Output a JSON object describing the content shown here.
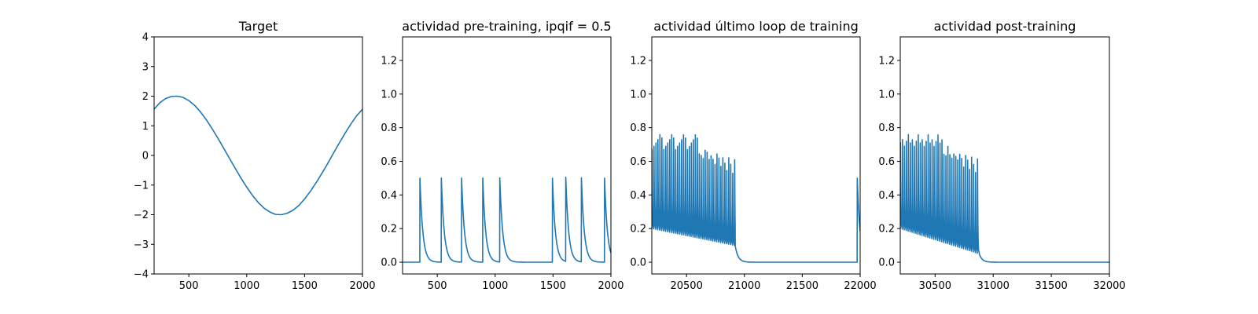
{
  "figure": {
    "background": "#ffffff",
    "line_color": "#1f77b4"
  },
  "chart_data": [
    {
      "type": "line",
      "title": "Target",
      "xlabel": "",
      "ylabel": "",
      "xlim": [
        200,
        2000
      ],
      "ylim": [
        -4,
        4
      ],
      "xticks": [
        500,
        1000,
        1500,
        2000
      ],
      "yticks": [
        -4,
        -3,
        -2,
        -1,
        0,
        1,
        2,
        3,
        4
      ],
      "xtick_labels": [
        "500",
        "1000",
        "1500",
        "2000"
      ],
      "ytick_labels": [
        "−4",
        "−3",
        "−2",
        "−1",
        "0",
        "1",
        "2",
        "3",
        "4"
      ],
      "grid": false,
      "series": [
        {
          "x": [
            200,
            250,
            300,
            350,
            400,
            450,
            500,
            550,
            600,
            650,
            700,
            750,
            800,
            850,
            900,
            950,
            1000,
            1050,
            1100,
            1150,
            1200,
            1250,
            1300,
            1350,
            1400,
            1450,
            1500,
            1550,
            1600,
            1650,
            1700,
            1750,
            1800,
            1850,
            1900,
            1950,
            2000
          ],
          "values": [
            1.56,
            1.78,
            1.92,
            1.99,
            2.0,
            1.96,
            1.85,
            1.69,
            1.47,
            1.21,
            0.91,
            0.59,
            0.25,
            -0.09,
            -0.43,
            -0.76,
            -1.07,
            -1.35,
            -1.59,
            -1.78,
            -1.91,
            -1.99,
            -2.0,
            -1.95,
            -1.85,
            -1.69,
            -1.47,
            -1.21,
            -0.92,
            -0.6,
            -0.27,
            0.08,
            0.42,
            0.75,
            1.06,
            1.34,
            1.56
          ]
        }
      ]
    },
    {
      "type": "line",
      "title": "actividad pre-training, ipqif = 0.5",
      "xlabel": "",
      "ylabel": "",
      "xlim": [
        200,
        2000
      ],
      "ylim": [
        -0.07,
        1.34
      ],
      "xticks": [
        500,
        1000,
        1500,
        2000
      ],
      "yticks": [
        0.0,
        0.2,
        0.4,
        0.6,
        0.8,
        1.0,
        1.2
      ],
      "xtick_labels": [
        "500",
        "1000",
        "1500",
        "2000"
      ],
      "ytick_labels": [
        "0.0",
        "0.2",
        "0.4",
        "0.6",
        "0.8",
        "1.0",
        "1.2"
      ],
      "grid": false,
      "spike_peak": 0.5,
      "spike_decay": 25,
      "baseline": 0.0,
      "spike_times": [
        350,
        535,
        710,
        893,
        1040,
        1495,
        1610,
        1745,
        1945
      ]
    },
    {
      "type": "line",
      "title": "actividad último loop de training",
      "xlabel": "",
      "ylabel": "",
      "xlim": [
        20200,
        22000
      ],
      "ylim": [
        -0.07,
        1.34
      ],
      "xticks": [
        20500,
        21000,
        21500,
        22000
      ],
      "yticks": [
        0.0,
        0.2,
        0.4,
        0.6,
        0.8,
        1.0,
        1.2
      ],
      "xtick_labels": [
        "20500",
        "21000",
        "21500",
        "22000"
      ],
      "ytick_labels": [
        "0.0",
        "0.2",
        "0.4",
        "0.6",
        "0.8",
        "1.0",
        "1.2"
      ],
      "grid": false,
      "spike_decay": 25,
      "baseline": 0.0,
      "burst": {
        "start": 20200,
        "end": 20920,
        "period": 17,
        "peaks_start": [
          0.68,
          0.7,
          0.72,
          0.74,
          0.77,
          0.75
        ],
        "peaks_end": [
          0.62,
          0.58,
          0.53
        ],
        "troughs_start": 0.2,
        "troughs_end": 0.1
      },
      "spike_times": [
        21975
      ]
    },
    {
      "type": "line",
      "title": "actividad post-training",
      "xlabel": "",
      "ylabel": "",
      "xlim": [
        30200,
        32000
      ],
      "ylim": [
        -0.07,
        1.34
      ],
      "xticks": [
        30500,
        31000,
        31500,
        32000
      ],
      "yticks": [
        0.0,
        0.2,
        0.4,
        0.6,
        0.8,
        1.0,
        1.2
      ],
      "xtick_labels": [
        "30500",
        "31000",
        "31500",
        "32000"
      ],
      "ytick_labels": [
        "0.0",
        "0.2",
        "0.4",
        "0.6",
        "0.8",
        "1.0",
        "1.2"
      ],
      "grid": false,
      "spike_decay": 25,
      "baseline": 0.0,
      "burst": {
        "start": 30200,
        "end": 30880,
        "period": 17,
        "peaks_start": [
          0.72,
          0.74,
          0.7,
          0.73,
          0.77
        ],
        "peaks_end": [
          0.62,
          0.58,
          0.53
        ],
        "troughs_start": 0.2,
        "troughs_end": 0.05
      },
      "spike_times": []
    }
  ]
}
